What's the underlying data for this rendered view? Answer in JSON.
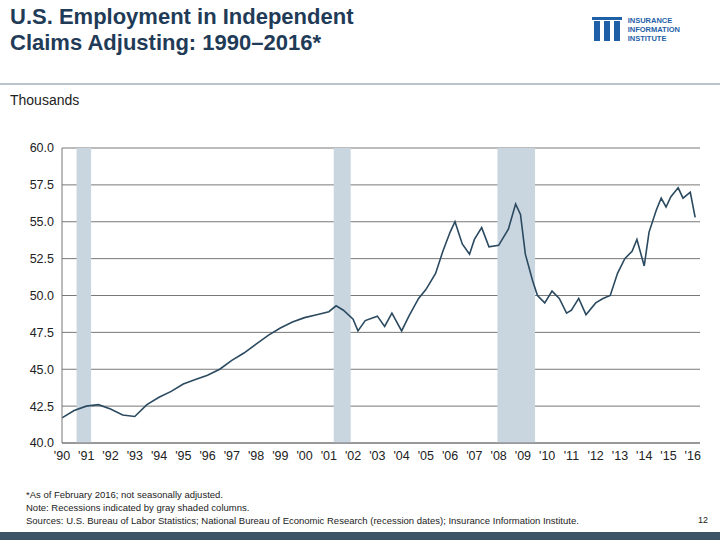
{
  "chart_data": {
    "type": "line",
    "title": [
      "U.S. Employment in Independent",
      "Claims Adjusting: 1990–2016*"
    ],
    "y_label": "Thousands",
    "logo": [
      "INSURANCE",
      "INFORMATION",
      "INSTITUTE"
    ],
    "notes": [
      "*As of February 2016; not seasonally adjusted.",
      "Note: Recessions indicated by gray shaded columns.",
      "Sources: U.S. Bureau of Labor Statistics; National Bureau of Economic Research (recession dates); Insurance Information Institute."
    ],
    "page_number": "12",
    "x": [
      1990.0,
      1990.5,
      1991.0,
      1991.5,
      1992.0,
      1992.5,
      1993.0,
      1993.5,
      1994.0,
      1994.5,
      1995.0,
      1995.5,
      1996.0,
      1996.5,
      1997.0,
      1997.5,
      1998.0,
      1998.5,
      1999.0,
      1999.5,
      2000.0,
      2000.5,
      2001.0,
      2001.3,
      2001.6,
      2002.0,
      2002.2,
      2002.5,
      2003.0,
      2003.3,
      2003.6,
      2004.0,
      2004.3,
      2004.7,
      2005.0,
      2005.4,
      2005.7,
      2006.0,
      2006.2,
      2006.5,
      2006.8,
      2007.0,
      2007.3,
      2007.6,
      2008.0,
      2008.4,
      2008.7,
      2008.9,
      2009.1,
      2009.4,
      2009.6,
      2009.9,
      2010.2,
      2010.5,
      2010.8,
      2011.0,
      2011.3,
      2011.6,
      2012.0,
      2012.3,
      2012.6,
      2012.9,
      2013.2,
      2013.5,
      2013.7,
      2014.0,
      2014.2,
      2014.5,
      2014.7,
      2014.9,
      2015.1,
      2015.4,
      2015.6,
      2015.9,
      2016.1
    ],
    "series": [
      {
        "color": "#2b4a60",
        "values": [
          41.7,
          42.2,
          42.5,
          42.6,
          42.3,
          41.9,
          41.8,
          42.6,
          43.1,
          43.5,
          44.0,
          44.3,
          44.6,
          45.0,
          45.6,
          46.1,
          46.7,
          47.3,
          47.8,
          48.2,
          48.5,
          48.7,
          48.9,
          49.3,
          49.0,
          48.4,
          47.6,
          48.3,
          48.6,
          47.9,
          48.8,
          47.6,
          48.6,
          49.8,
          50.4,
          51.5,
          53.0,
          54.3,
          55.0,
          53.5,
          52.8,
          53.8,
          54.6,
          53.3,
          53.4,
          54.5,
          56.2,
          55.5,
          52.8,
          51.0,
          50.0,
          49.5,
          50.3,
          49.8,
          48.8,
          49.0,
          49.8,
          48.7,
          49.5,
          49.8,
          50.0,
          51.5,
          52.5,
          53.0,
          53.8,
          52.0,
          54.3,
          55.8,
          56.6,
          56.0,
          56.7,
          57.3,
          56.6,
          57.0,
          55.3
        ]
      }
    ],
    "recessions": [
      [
        1990.6,
        1991.2
      ],
      [
        2001.2,
        2001.9
      ],
      [
        2007.95,
        2009.5
      ]
    ],
    "xlim": [
      1990,
      2016.3
    ],
    "xticks": [
      {
        "value": 1990,
        "label": "'90"
      },
      {
        "value": 1991,
        "label": "'91"
      },
      {
        "value": 1992,
        "label": "'92"
      },
      {
        "value": 1993,
        "label": "'93"
      },
      {
        "value": 1994,
        "label": "'94"
      },
      {
        "value": 1995,
        "label": "'95"
      },
      {
        "value": 1996,
        "label": "'96"
      },
      {
        "value": 1997,
        "label": "'97"
      },
      {
        "value": 1998,
        "label": "'98"
      },
      {
        "value": 1999,
        "label": "'99"
      },
      {
        "value": 2000,
        "label": "'00"
      },
      {
        "value": 2001,
        "label": "'01"
      },
      {
        "value": 2002,
        "label": "'02"
      },
      {
        "value": 2003,
        "label": "'03"
      },
      {
        "value": 2004,
        "label": "'04"
      },
      {
        "value": 2005,
        "label": "'05"
      },
      {
        "value": 2006,
        "label": "'06"
      },
      {
        "value": 2007,
        "label": "'07"
      },
      {
        "value": 2008,
        "label": "'08"
      },
      {
        "value": 2009,
        "label": "'09"
      },
      {
        "value": 2010,
        "label": "'10"
      },
      {
        "value": 2011,
        "label": "'11"
      },
      {
        "value": 2012,
        "label": "'12"
      },
      {
        "value": 2013,
        "label": "'13"
      },
      {
        "value": 2014,
        "label": "'14"
      },
      {
        "value": 2015,
        "label": "'15"
      },
      {
        "value": 2016,
        "label": "'16"
      }
    ],
    "ylim": [
      40,
      60
    ],
    "yticks": [
      {
        "value": 40,
        "label": "40.0"
      },
      42.5,
      {
        "value": 45,
        "label": "45.0"
      },
      47.5,
      {
        "value": 50,
        "label": "50.0"
      },
      52.5,
      {
        "value": 55,
        "label": "55.0"
      },
      57.5,
      {
        "value": 60,
        "label": "60.0"
      }
    ],
    "grid": true
  }
}
